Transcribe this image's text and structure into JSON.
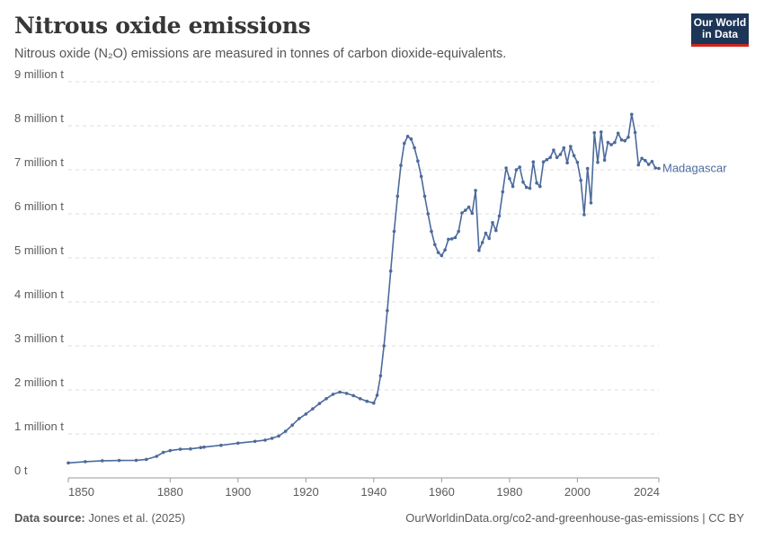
{
  "header": {
    "title": "Nitrous oxide emissions",
    "subtitle": "Nitrous oxide (N₂O) emissions are measured in tonnes of carbon dioxide-equivalents.",
    "logo_line1": "Our World",
    "logo_line2": "in Data"
  },
  "footer": {
    "source_label": "Data source:",
    "source_text": "Jones et al. (2025)",
    "right_text": "OurWorldinData.org/co2-and-greenhouse-gas-emissions | CC BY"
  },
  "colors": {
    "series": "#4c6a9c",
    "grid": "#dddddd",
    "text": "#5b5b5b"
  },
  "chart_data": {
    "type": "line",
    "title": "Nitrous oxide emissions",
    "subtitle": "Nitrous oxide (N₂O) emissions are measured in tonnes of carbon dioxide-equivalents.",
    "xlim": [
      1850,
      2024
    ],
    "ylim": [
      0,
      9000000
    ],
    "x_ticks": [
      1850,
      1880,
      1900,
      1920,
      1940,
      1960,
      1980,
      2000,
      2024
    ],
    "y_ticks": [
      {
        "value": 0,
        "label": "0 t"
      },
      {
        "value": 1000000,
        "label": "1 million t"
      },
      {
        "value": 2000000,
        "label": "2 million t"
      },
      {
        "value": 3000000,
        "label": "3 million t"
      },
      {
        "value": 4000000,
        "label": "4 million t"
      },
      {
        "value": 5000000,
        "label": "5 million t"
      },
      {
        "value": 6000000,
        "label": "6 million t"
      },
      {
        "value": 7000000,
        "label": "7 million t"
      },
      {
        "value": 8000000,
        "label": "8 million t"
      },
      {
        "value": 9000000,
        "label": "9 million t"
      }
    ],
    "grid": true,
    "series": [
      {
        "name": "Madagascar",
        "points": [
          [
            1850,
            340000
          ],
          [
            1855,
            370000
          ],
          [
            1860,
            390000
          ],
          [
            1865,
            395000
          ],
          [
            1870,
            400000
          ],
          [
            1873,
            420000
          ],
          [
            1876,
            490000
          ],
          [
            1878,
            580000
          ],
          [
            1880,
            620000
          ],
          [
            1883,
            650000
          ],
          [
            1886,
            660000
          ],
          [
            1889,
            690000
          ],
          [
            1890,
            700000
          ],
          [
            1895,
            740000
          ],
          [
            1900,
            790000
          ],
          [
            1905,
            830000
          ],
          [
            1908,
            860000
          ],
          [
            1910,
            900000
          ],
          [
            1912,
            950000
          ],
          [
            1914,
            1060000
          ],
          [
            1916,
            1200000
          ],
          [
            1918,
            1350000
          ],
          [
            1920,
            1450000
          ],
          [
            1922,
            1570000
          ],
          [
            1924,
            1690000
          ],
          [
            1926,
            1800000
          ],
          [
            1928,
            1900000
          ],
          [
            1930,
            1950000
          ],
          [
            1932,
            1920000
          ],
          [
            1934,
            1870000
          ],
          [
            1936,
            1800000
          ],
          [
            1938,
            1740000
          ],
          [
            1940,
            1700000
          ],
          [
            1941,
            1880000
          ],
          [
            1942,
            2320000
          ],
          [
            1943,
            3000000
          ],
          [
            1944,
            3800000
          ],
          [
            1945,
            4700000
          ],
          [
            1946,
            5600000
          ],
          [
            1947,
            6400000
          ],
          [
            1948,
            7100000
          ],
          [
            1949,
            7600000
          ],
          [
            1950,
            7760000
          ],
          [
            1951,
            7700000
          ],
          [
            1952,
            7500000
          ],
          [
            1953,
            7200000
          ],
          [
            1954,
            6850000
          ],
          [
            1955,
            6400000
          ],
          [
            1956,
            6000000
          ],
          [
            1957,
            5600000
          ],
          [
            1958,
            5300000
          ],
          [
            1959,
            5120000
          ],
          [
            1960,
            5050000
          ],
          [
            1961,
            5180000
          ],
          [
            1962,
            5420000
          ],
          [
            1963,
            5430000
          ],
          [
            1964,
            5460000
          ],
          [
            1965,
            5600000
          ],
          [
            1966,
            6020000
          ],
          [
            1967,
            6080000
          ],
          [
            1968,
            6150000
          ],
          [
            1969,
            6010000
          ],
          [
            1970,
            6530000
          ],
          [
            1971,
            5170000
          ],
          [
            1972,
            5350000
          ],
          [
            1973,
            5560000
          ],
          [
            1974,
            5440000
          ],
          [
            1975,
            5800000
          ],
          [
            1976,
            5620000
          ],
          [
            1977,
            5950000
          ],
          [
            1978,
            6500000
          ],
          [
            1979,
            7040000
          ],
          [
            1980,
            6800000
          ],
          [
            1981,
            6620000
          ],
          [
            1982,
            7000000
          ],
          [
            1983,
            7060000
          ],
          [
            1984,
            6720000
          ],
          [
            1985,
            6600000
          ],
          [
            1986,
            6580000
          ],
          [
            1987,
            7180000
          ],
          [
            1988,
            6700000
          ],
          [
            1989,
            6620000
          ],
          [
            1990,
            7180000
          ],
          [
            1991,
            7230000
          ],
          [
            1992,
            7280000
          ],
          [
            1993,
            7450000
          ],
          [
            1994,
            7280000
          ],
          [
            1995,
            7350000
          ],
          [
            1996,
            7500000
          ],
          [
            1997,
            7160000
          ],
          [
            1998,
            7530000
          ],
          [
            1999,
            7320000
          ],
          [
            2000,
            7170000
          ],
          [
            2001,
            6760000
          ],
          [
            2002,
            5980000
          ],
          [
            2003,
            7030000
          ],
          [
            2004,
            6250000
          ],
          [
            2005,
            7840000
          ],
          [
            2006,
            7170000
          ],
          [
            2007,
            7860000
          ],
          [
            2008,
            7220000
          ],
          [
            2009,
            7620000
          ],
          [
            2010,
            7570000
          ],
          [
            2011,
            7620000
          ],
          [
            2012,
            7830000
          ],
          [
            2013,
            7680000
          ],
          [
            2014,
            7660000
          ],
          [
            2015,
            7740000
          ],
          [
            2016,
            8260000
          ],
          [
            2017,
            7850000
          ],
          [
            2018,
            7110000
          ],
          [
            2019,
            7260000
          ],
          [
            2020,
            7210000
          ],
          [
            2021,
            7120000
          ],
          [
            2022,
            7190000
          ],
          [
            2023,
            7040000
          ],
          [
            2024,
            7030000
          ]
        ]
      }
    ]
  }
}
